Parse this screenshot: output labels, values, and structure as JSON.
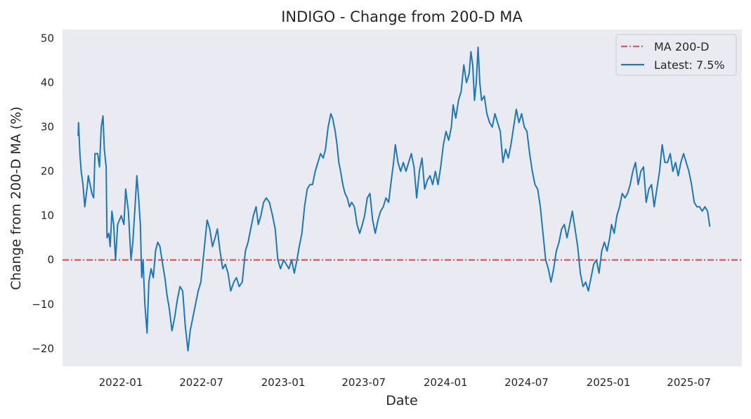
{
  "chart_data": {
    "type": "line",
    "title": "INDIGO - Change from 200-D MA",
    "xlabel": "Date",
    "ylabel": "Change from 200-D MA (%)",
    "xlim": [
      "2021-08-23",
      "2025-10-28"
    ],
    "ylim": [
      -24,
      52
    ],
    "grid": false,
    "background_color": "#eaeaf2",
    "legend_position": "top-right",
    "x_ticks": [
      "2022-01",
      "2022-07",
      "2023-01",
      "2023-07",
      "2024-01",
      "2024-07",
      "2025-01",
      "2025-07"
    ],
    "y_ticks": [
      -20,
      -10,
      0,
      10,
      20,
      30,
      40,
      50
    ],
    "reference_line": {
      "name": "MA 200-D",
      "y": 0,
      "color": "#d1605e",
      "style": "dash-dot"
    },
    "series": [
      {
        "name": "Latest: 7.5%",
        "color": "#1f77b4",
        "points": [
          [
            "2021-09-27",
            28
          ],
          [
            "2021-09-28",
            31
          ],
          [
            "2021-10-01",
            24
          ],
          [
            "2021-10-04",
            20
          ],
          [
            "2021-10-08",
            17
          ],
          [
            "2021-10-12",
            12
          ],
          [
            "2021-10-18",
            17
          ],
          [
            "2021-10-20",
            19
          ],
          [
            "2021-10-28",
            15
          ],
          [
            "2021-11-01",
            14
          ],
          [
            "2021-11-04",
            24
          ],
          [
            "2021-11-10",
            24
          ],
          [
            "2021-11-14",
            21
          ],
          [
            "2021-11-18",
            30
          ],
          [
            "2021-11-22",
            32.5
          ],
          [
            "2021-11-25",
            25
          ],
          [
            "2021-11-29",
            21
          ],
          [
            "2021-12-01",
            5
          ],
          [
            "2021-12-05",
            6
          ],
          [
            "2021-12-08",
            3
          ],
          [
            "2021-12-12",
            11
          ],
          [
            "2021-12-16",
            8
          ],
          [
            "2021-12-20",
            0
          ],
          [
            "2021-12-25",
            8
          ],
          [
            "2022-01-02",
            10
          ],
          [
            "2022-01-08",
            8
          ],
          [
            "2022-01-12",
            16
          ],
          [
            "2022-01-18",
            11
          ],
          [
            "2022-01-24",
            0
          ],
          [
            "2022-01-28",
            4
          ],
          [
            "2022-02-02",
            12
          ],
          [
            "2022-02-06",
            19
          ],
          [
            "2022-02-10",
            14
          ],
          [
            "2022-02-14",
            8
          ],
          [
            "2022-02-17",
            -4
          ],
          [
            "2022-02-20",
            0
          ],
          [
            "2022-02-24",
            -10
          ],
          [
            "2022-03-01",
            -16.5
          ],
          [
            "2022-03-05",
            -5
          ],
          [
            "2022-03-10",
            -2
          ],
          [
            "2022-03-15",
            -4
          ],
          [
            "2022-03-20",
            2
          ],
          [
            "2022-03-25",
            4
          ],
          [
            "2022-03-30",
            3
          ],
          [
            "2022-04-05",
            -1
          ],
          [
            "2022-04-10",
            -4
          ],
          [
            "2022-04-15",
            -8
          ],
          [
            "2022-04-20",
            -11
          ],
          [
            "2022-04-26",
            -16
          ],
          [
            "2022-05-02",
            -13
          ],
          [
            "2022-05-08",
            -9
          ],
          [
            "2022-05-14",
            -6
          ],
          [
            "2022-05-20",
            -7
          ],
          [
            "2022-05-26",
            -15
          ],
          [
            "2022-06-01",
            -20.5
          ],
          [
            "2022-06-06",
            -16
          ],
          [
            "2022-06-12",
            -13
          ],
          [
            "2022-06-18",
            -10
          ],
          [
            "2022-06-24",
            -7
          ],
          [
            "2022-06-30",
            -5
          ],
          [
            "2022-07-05",
            0
          ],
          [
            "2022-07-10",
            5
          ],
          [
            "2022-07-14",
            9
          ],
          [
            "2022-07-20",
            7
          ],
          [
            "2022-07-26",
            3
          ],
          [
            "2022-08-01",
            5
          ],
          [
            "2022-08-06",
            7
          ],
          [
            "2022-08-12",
            2
          ],
          [
            "2022-08-18",
            -2
          ],
          [
            "2022-08-24",
            -1
          ],
          [
            "2022-08-30",
            -3
          ],
          [
            "2022-09-05",
            -7
          ],
          [
            "2022-09-12",
            -5
          ],
          [
            "2022-09-18",
            -4
          ],
          [
            "2022-09-24",
            -6
          ],
          [
            "2022-10-01",
            -5
          ],
          [
            "2022-10-08",
            2
          ],
          [
            "2022-10-14",
            4
          ],
          [
            "2022-10-20",
            7
          ],
          [
            "2022-10-26",
            10
          ],
          [
            "2022-11-01",
            12
          ],
          [
            "2022-11-06",
            8
          ],
          [
            "2022-11-12",
            10
          ],
          [
            "2022-11-18",
            13
          ],
          [
            "2022-11-24",
            14
          ],
          [
            "2022-12-01",
            13
          ],
          [
            "2022-12-08",
            10
          ],
          [
            "2022-12-14",
            7
          ],
          [
            "2022-12-20",
            0
          ],
          [
            "2022-12-26",
            -2
          ],
          [
            "2023-01-02",
            0
          ],
          [
            "2023-01-08",
            -1
          ],
          [
            "2023-01-14",
            -2
          ],
          [
            "2023-01-20",
            0
          ],
          [
            "2023-01-26",
            -3
          ],
          [
            "2023-02-01",
            0
          ],
          [
            "2023-02-06",
            3
          ],
          [
            "2023-02-12",
            6
          ],
          [
            "2023-02-18",
            12
          ],
          [
            "2023-02-24",
            16
          ],
          [
            "2023-03-02",
            17
          ],
          [
            "2023-03-08",
            17
          ],
          [
            "2023-03-14",
            20
          ],
          [
            "2023-03-20",
            22
          ],
          [
            "2023-03-26",
            24
          ],
          [
            "2023-04-01",
            23
          ],
          [
            "2023-04-06",
            25
          ],
          [
            "2023-04-12",
            30
          ],
          [
            "2023-04-18",
            33
          ],
          [
            "2023-04-22",
            32
          ],
          [
            "2023-04-28",
            29
          ],
          [
            "2023-05-02",
            26
          ],
          [
            "2023-05-06",
            22
          ],
          [
            "2023-05-10",
            20
          ],
          [
            "2023-05-15",
            17
          ],
          [
            "2023-05-20",
            15
          ],
          [
            "2023-05-25",
            14
          ],
          [
            "2023-05-30",
            12
          ],
          [
            "2023-06-04",
            13
          ],
          [
            "2023-06-10",
            12
          ],
          [
            "2023-06-16",
            8
          ],
          [
            "2023-06-22",
            6
          ],
          [
            "2023-06-28",
            8
          ],
          [
            "2023-07-03",
            10
          ],
          [
            "2023-07-09",
            14
          ],
          [
            "2023-07-15",
            15
          ],
          [
            "2023-07-21",
            9
          ],
          [
            "2023-07-27",
            6
          ],
          [
            "2023-08-02",
            9
          ],
          [
            "2023-08-08",
            11
          ],
          [
            "2023-08-14",
            12
          ],
          [
            "2023-08-20",
            14
          ],
          [
            "2023-08-26",
            13
          ],
          [
            "2023-09-01",
            18
          ],
          [
            "2023-09-06",
            22
          ],
          [
            "2023-09-10",
            26
          ],
          [
            "2023-09-16",
            22
          ],
          [
            "2023-09-22",
            20
          ],
          [
            "2023-09-28",
            22
          ],
          [
            "2023-10-04",
            20
          ],
          [
            "2023-10-10",
            22
          ],
          [
            "2023-10-16",
            24
          ],
          [
            "2023-10-22",
            21
          ],
          [
            "2023-10-28",
            14
          ],
          [
            "2023-11-03",
            20
          ],
          [
            "2023-11-09",
            23
          ],
          [
            "2023-11-15",
            16
          ],
          [
            "2023-11-21",
            18
          ],
          [
            "2023-11-27",
            19
          ],
          [
            "2023-12-03",
            17
          ],
          [
            "2023-12-09",
            20
          ],
          [
            "2023-12-15",
            17
          ],
          [
            "2023-12-21",
            21
          ],
          [
            "2023-12-27",
            26
          ],
          [
            "2024-01-02",
            29
          ],
          [
            "2024-01-08",
            27
          ],
          [
            "2024-01-14",
            30
          ],
          [
            "2024-01-18",
            35
          ],
          [
            "2024-01-24",
            32
          ],
          [
            "2024-01-30",
            36
          ],
          [
            "2024-02-05",
            38
          ],
          [
            "2024-02-11",
            44
          ],
          [
            "2024-02-17",
            40
          ],
          [
            "2024-02-23",
            42
          ],
          [
            "2024-02-27",
            47
          ],
          [
            "2024-03-02",
            44
          ],
          [
            "2024-03-06",
            36
          ],
          [
            "2024-03-10",
            40
          ],
          [
            "2024-03-14",
            48
          ],
          [
            "2024-03-18",
            40
          ],
          [
            "2024-03-22",
            36
          ],
          [
            "2024-03-28",
            37
          ],
          [
            "2024-04-03",
            33
          ],
          [
            "2024-04-09",
            31
          ],
          [
            "2024-04-15",
            30
          ],
          [
            "2024-04-21",
            33
          ],
          [
            "2024-04-27",
            31
          ],
          [
            "2024-05-03",
            29
          ],
          [
            "2024-05-09",
            22
          ],
          [
            "2024-05-15",
            25
          ],
          [
            "2024-05-21",
            23
          ],
          [
            "2024-05-27",
            26
          ],
          [
            "2024-06-02",
            30
          ],
          [
            "2024-06-08",
            34
          ],
          [
            "2024-06-14",
            31
          ],
          [
            "2024-06-20",
            33
          ],
          [
            "2024-06-26",
            30
          ],
          [
            "2024-07-02",
            29
          ],
          [
            "2024-07-08",
            24
          ],
          [
            "2024-07-14",
            20
          ],
          [
            "2024-07-20",
            17
          ],
          [
            "2024-07-26",
            16
          ],
          [
            "2024-08-01",
            12
          ],
          [
            "2024-08-07",
            6
          ],
          [
            "2024-08-13",
            0
          ],
          [
            "2024-08-19",
            -2
          ],
          [
            "2024-08-25",
            -5
          ],
          [
            "2024-08-31",
            -2
          ],
          [
            "2024-09-06",
            2
          ],
          [
            "2024-09-12",
            4
          ],
          [
            "2024-09-18",
            7
          ],
          [
            "2024-09-24",
            8
          ],
          [
            "2024-09-30",
            5
          ],
          [
            "2024-10-06",
            8
          ],
          [
            "2024-10-12",
            11
          ],
          [
            "2024-10-18",
            7
          ],
          [
            "2024-10-24",
            3
          ],
          [
            "2024-10-30",
            -3
          ],
          [
            "2024-11-05",
            -6
          ],
          [
            "2024-11-11",
            -5
          ],
          [
            "2024-11-17",
            -7
          ],
          [
            "2024-11-23",
            -4
          ],
          [
            "2024-11-29",
            -1
          ],
          [
            "2024-12-05",
            0
          ],
          [
            "2024-12-11",
            -3
          ],
          [
            "2024-12-17",
            2
          ],
          [
            "2024-12-23",
            4
          ],
          [
            "2024-12-29",
            2
          ],
          [
            "2025-01-04",
            5
          ],
          [
            "2025-01-08",
            8
          ],
          [
            "2025-01-14",
            6
          ],
          [
            "2025-01-20",
            10
          ],
          [
            "2025-01-26",
            12
          ],
          [
            "2025-02-01",
            15
          ],
          [
            "2025-02-07",
            14
          ],
          [
            "2025-02-13",
            15
          ],
          [
            "2025-02-19",
            17
          ],
          [
            "2025-02-25",
            20
          ],
          [
            "2025-03-03",
            22
          ],
          [
            "2025-03-09",
            17
          ],
          [
            "2025-03-15",
            20
          ],
          [
            "2025-03-21",
            21
          ],
          [
            "2025-03-27",
            13
          ],
          [
            "2025-04-02",
            16
          ],
          [
            "2025-04-08",
            17
          ],
          [
            "2025-04-14",
            12
          ],
          [
            "2025-04-20",
            16
          ],
          [
            "2025-04-26",
            20
          ],
          [
            "2025-05-02",
            26
          ],
          [
            "2025-05-08",
            22
          ],
          [
            "2025-05-14",
            22
          ],
          [
            "2025-05-20",
            24
          ],
          [
            "2025-05-26",
            20
          ],
          [
            "2025-06-01",
            22
          ],
          [
            "2025-06-07",
            19
          ],
          [
            "2025-06-13",
            22
          ],
          [
            "2025-06-19",
            24
          ],
          [
            "2025-06-25",
            22
          ],
          [
            "2025-07-01",
            20
          ],
          [
            "2025-07-07",
            17
          ],
          [
            "2025-07-13",
            13
          ],
          [
            "2025-07-19",
            12
          ],
          [
            "2025-07-25",
            12
          ],
          [
            "2025-07-31",
            11
          ],
          [
            "2025-08-06",
            12
          ],
          [
            "2025-08-12",
            11
          ],
          [
            "2025-08-17",
            7.5
          ]
        ]
      }
    ]
  }
}
